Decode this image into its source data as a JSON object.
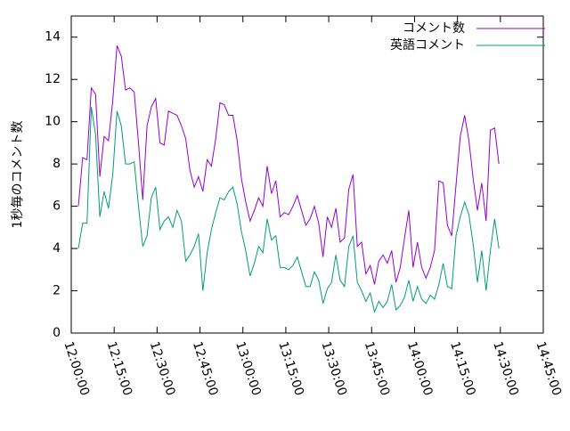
{
  "chart_data": {
    "type": "line",
    "y_label": "1秒毎のコメント数",
    "x": [
      "12:02:30",
      "12:04:00",
      "12:05:30",
      "12:07:00",
      "12:08:30",
      "12:10:00",
      "12:11:30",
      "12:13:00",
      "12:14:30",
      "12:16:00",
      "12:17:30",
      "12:19:00",
      "12:20:30",
      "12:22:00",
      "12:23:30",
      "12:25:00",
      "12:26:30",
      "12:28:00",
      "12:29:30",
      "12:31:00",
      "12:32:30",
      "12:34:00",
      "12:35:30",
      "12:37:00",
      "12:38:30",
      "12:40:00",
      "12:41:30",
      "12:43:00",
      "12:44:30",
      "12:46:00",
      "12:47:30",
      "12:49:00",
      "12:50:30",
      "12:52:00",
      "12:53:30",
      "12:55:00",
      "12:56:30",
      "12:58:00",
      "12:59:30",
      "13:01:00",
      "13:02:30",
      "13:04:00",
      "13:05:30",
      "13:07:00",
      "13:08:30",
      "13:10:00",
      "13:11:30",
      "13:13:00",
      "13:14:30",
      "13:16:00",
      "13:17:30",
      "13:19:00",
      "13:20:30",
      "13:22:00",
      "13:23:30",
      "13:25:00",
      "13:26:30",
      "13:28:00",
      "13:29:30",
      "13:31:00",
      "13:32:30",
      "13:34:00",
      "13:35:30",
      "13:37:00",
      "13:38:30",
      "13:40:00",
      "13:41:30",
      "13:43:00",
      "13:44:30",
      "13:46:00",
      "13:47:30",
      "13:49:00",
      "13:50:30",
      "13:52:00",
      "13:53:30",
      "13:55:00",
      "13:56:30",
      "13:58:00",
      "13:59:30",
      "14:01:00",
      "14:02:30",
      "14:04:00",
      "14:05:30",
      "14:07:00",
      "14:08:30",
      "14:10:00",
      "14:11:30",
      "14:13:00",
      "14:14:30",
      "14:16:00",
      "14:17:30",
      "14:19:00",
      "14:20:30",
      "14:22:00",
      "14:23:30",
      "14:25:00",
      "14:26:30",
      "14:28:00",
      "14:29:30"
    ],
    "series": [
      {
        "name": "コメント数",
        "color": "#9400d3",
        "values": [
          6.0,
          8.3,
          8.2,
          11.6,
          11.3,
          7.4,
          9.3,
          9.1,
          11.0,
          13.6,
          13.1,
          11.5,
          11.6,
          11.4,
          9.0,
          6.3,
          9.8,
          10.7,
          11.1,
          9.0,
          8.9,
          10.5,
          10.4,
          10.3,
          9.8,
          9.2,
          7.7,
          6.9,
          7.4,
          6.7,
          8.2,
          7.9,
          9.2,
          10.9,
          10.8,
          10.3,
          10.3,
          9.1,
          7.3,
          6.2,
          5.3,
          5.8,
          6.4,
          6.0,
          7.9,
          6.6,
          7.2,
          5.5,
          5.7,
          5.6,
          6.0,
          6.5,
          5.8,
          5.1,
          5.4,
          6.0,
          5.2,
          3.6,
          5.5,
          5.0,
          5.9,
          4.3,
          4.5,
          6.8,
          7.5,
          4.1,
          4.3,
          2.8,
          3.2,
          2.3,
          3.4,
          3.7,
          3.3,
          3.9,
          2.4,
          3.1,
          4.5,
          5.8,
          3.1,
          4.3,
          3.1,
          2.6,
          3.1,
          3.9,
          7.2,
          7.1,
          5.1,
          4.6,
          7.0,
          9.3,
          10.3,
          9.1,
          7.3,
          5.8,
          7.1,
          5.3,
          9.6,
          9.7,
          8.0
        ]
      },
      {
        "name": "英語コメント",
        "color": "#009e73",
        "values": [
          4.0,
          5.2,
          5.2,
          10.7,
          9.4,
          5.5,
          6.7,
          5.9,
          7.5,
          10.5,
          9.8,
          8.0,
          8.0,
          8.1,
          6.0,
          4.1,
          4.6,
          6.4,
          6.9,
          4.9,
          5.3,
          5.5,
          5.0,
          5.8,
          5.3,
          3.4,
          3.7,
          4.1,
          4.7,
          2.0,
          3.8,
          4.9,
          5.7,
          6.4,
          6.3,
          6.7,
          6.9,
          6.1,
          4.8,
          3.9,
          2.7,
          3.3,
          4.1,
          3.8,
          5.4,
          4.4,
          4.6,
          3.1,
          3.1,
          3.0,
          3.2,
          3.6,
          2.9,
          2.2,
          2.2,
          2.9,
          2.5,
          1.4,
          2.1,
          2.4,
          3.7,
          2.5,
          2.2,
          4.1,
          4.6,
          2.4,
          2.0,
          1.5,
          1.9,
          1.0,
          1.5,
          1.2,
          1.5,
          2.3,
          1.1,
          1.3,
          1.7,
          2.5,
          1.5,
          2.2,
          1.6,
          1.4,
          1.8,
          1.6,
          2.3,
          3.3,
          2.2,
          2.1,
          4.6,
          5.5,
          6.2,
          5.6,
          4.2,
          2.4,
          3.9,
          2.0,
          3.9,
          5.4,
          4.0
        ]
      }
    ],
    "xlim": [
      "12:00:00",
      "14:45:00"
    ],
    "xticks": [
      "12:00:00",
      "12:15:00",
      "12:30:00",
      "12:45:00",
      "13:00:00",
      "13:15:00",
      "13:30:00",
      "13:45:00",
      "14:00:00",
      "14:15:00",
      "14:30:00",
      "14:45:00"
    ],
    "ylim": [
      0,
      15
    ],
    "yticks": [
      0,
      2,
      4,
      6,
      8,
      10,
      12,
      14
    ],
    "legend": "top-right"
  }
}
